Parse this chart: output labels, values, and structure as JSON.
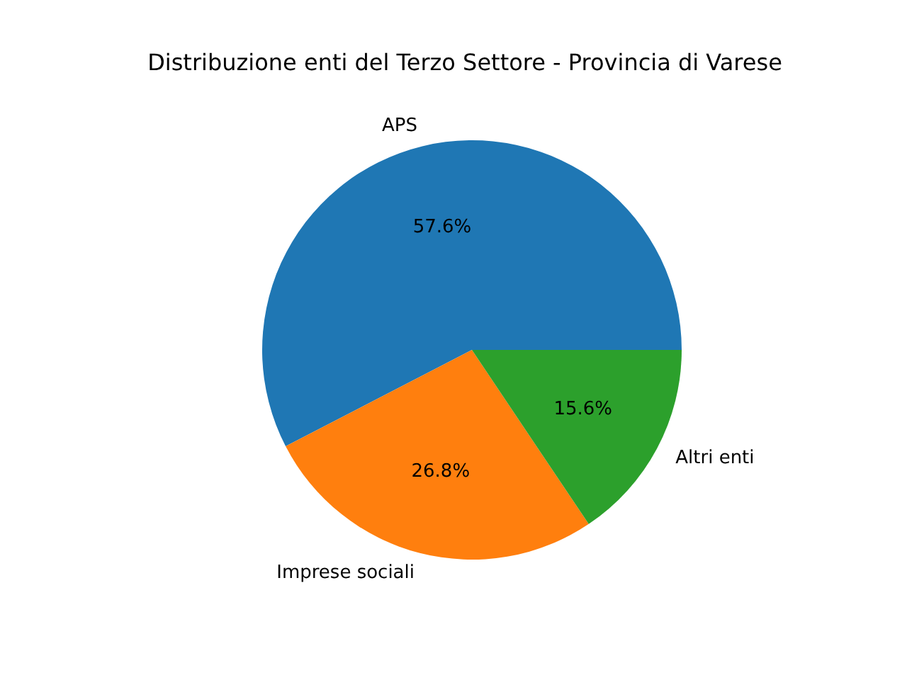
{
  "chart_data": {
    "type": "pie",
    "title": "Distribuzione enti del Terzo Settore - Provincia di Varese",
    "categories": [
      "APS",
      "Imprese sociali",
      "Altri enti"
    ],
    "values": [
      57.6,
      26.8,
      15.6
    ],
    "colors": [
      "#1f77b4",
      "#ff7f0e",
      "#2ca02c"
    ],
    "value_labels": [
      "57.6%",
      "26.8%",
      "15.6%"
    ]
  }
}
